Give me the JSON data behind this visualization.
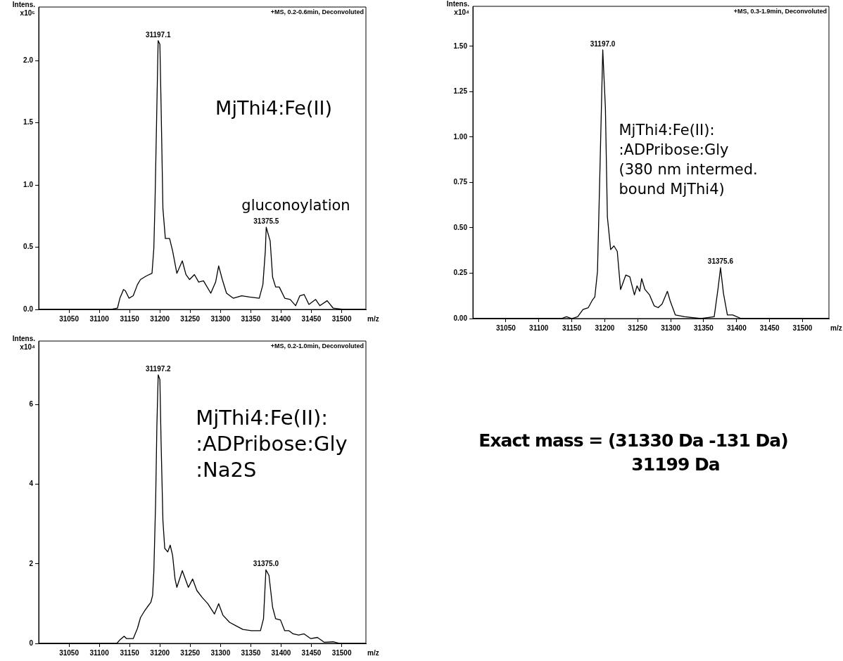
{
  "chart_data": [
    {
      "type": "line",
      "title": "+MS, 0.2-0.6min, Deconvoluted",
      "xlabel": "m/z",
      "ylabel": "Intens. x10⁵",
      "legend": false,
      "grid": false,
      "xlim": [
        31000,
        31540
      ],
      "xticks": [
        31050,
        31100,
        31150,
        31200,
        31250,
        31300,
        31350,
        31400,
        31450,
        31500
      ],
      "ylim": [
        0,
        2.43
      ],
      "yticks": [
        {
          "value": 0,
          "label": "0.0"
        },
        0.5,
        {
          "value": 1,
          "label": "1.0"
        },
        1.5,
        {
          "value": 2,
          "label": "2.0"
        }
      ],
      "series": [
        {
          "color": "#000000",
          "x": [
            31000,
            31120,
            31130,
            31134,
            31140,
            31143,
            31149,
            31156,
            31163,
            31168,
            31178,
            31187,
            31190,
            31192,
            31195,
            31197.1,
            31200,
            31202,
            31205,
            31209,
            31216,
            31221,
            31228,
            31237,
            31243,
            31249,
            31257,
            31264,
            31272,
            31284,
            31292,
            31297,
            31303,
            31310,
            31321,
            31335,
            31348,
            31364,
            31370,
            31374,
            31375.5,
            31382,
            31386,
            31391,
            31397,
            31406,
            31415,
            31424,
            31431,
            31438,
            31446,
            31457,
            31464,
            31476,
            31486,
            31502,
            31540
          ],
          "values": [
            0,
            0,
            0.01,
            0.09,
            0.16,
            0.15,
            0.09,
            0.11,
            0.2,
            0.24,
            0.27,
            0.29,
            0.49,
            0.87,
            1.63,
            2.16,
            2.13,
            1.63,
            0.81,
            0.57,
            0.57,
            0.47,
            0.29,
            0.39,
            0.28,
            0.24,
            0.28,
            0.22,
            0.23,
            0.13,
            0.22,
            0.35,
            0.24,
            0.13,
            0.09,
            0.11,
            0.1,
            0.09,
            0.2,
            0.47,
            0.66,
            0.55,
            0.26,
            0.18,
            0.18,
            0.09,
            0.08,
            0.03,
            0.11,
            0.12,
            0.04,
            0.08,
            0.03,
            0.07,
            0.01,
            0,
            0
          ]
        }
      ],
      "annotations": [
        {
          "text": "31197.1",
          "x": 31197.1,
          "y": 2.16
        },
        {
          "text": "31375.5",
          "x": 31375.5,
          "y": 0.66
        },
        "MjThi4:Fe(II)",
        "gluconoylation"
      ]
    },
    {
      "type": "line",
      "title": "+MS, 0.3-1.9min, Deconvoluted",
      "xlabel": "m/z",
      "ylabel": "Intens. x10⁴",
      "legend": false,
      "grid": false,
      "xlim": [
        31000,
        31540
      ],
      "xticks": [
        31050,
        31100,
        31150,
        31200,
        31250,
        31300,
        31350,
        31400,
        31450,
        31500
      ],
      "ylim": [
        0,
        1.72
      ],
      "yticks": [
        {
          "value": 0,
          "label": "0.00"
        },
        0.25,
        {
          "value": 0.5,
          "label": "0.50"
        },
        0.75,
        {
          "value": 1,
          "label": "1.00"
        },
        1.25,
        {
          "value": 1.5,
          "label": "1.50"
        }
      ],
      "series": [
        {
          "color": "#000000",
          "x": [
            31000,
            31134,
            31142,
            31150,
            31159,
            31167,
            31175,
            31181,
            31185,
            31189,
            31193,
            31197.0,
            31201,
            31204,
            31209,
            31214,
            31219,
            31224,
            31232,
            31238,
            31245,
            31249,
            31253,
            31256,
            31261,
            31268,
            31275,
            31281,
            31287,
            31295,
            31299,
            31307,
            31321,
            31346,
            31366,
            31372,
            31375.6,
            31380,
            31386,
            31394,
            31407,
            31540
          ],
          "values": [
            0,
            0,
            0.01,
            0,
            0.01,
            0.05,
            0.06,
            0.1,
            0.12,
            0.26,
            0.86,
            1.48,
            1.16,
            0.56,
            0.38,
            0.4,
            0.37,
            0.16,
            0.24,
            0.23,
            0.13,
            0.18,
            0.15,
            0.22,
            0.16,
            0.13,
            0.07,
            0.06,
            0.08,
            0.15,
            0.1,
            0.02,
            0.01,
            0,
            0.01,
            0.17,
            0.28,
            0.14,
            0.02,
            0.02,
            0,
            0
          ]
        }
      ],
      "annotations": [
        {
          "text": "31197.0",
          "x": 31197.0,
          "y": 1.48
        },
        {
          "text": "31375.6",
          "x": 31375.6,
          "y": 0.28
        },
        "MjThi4:Fe(II):",
        ":ADPribose:Gly",
        "(380 nm intermed.",
        "bound MjThi4)"
      ]
    },
    {
      "type": "line",
      "title": "+MS, 0.2-1.0min, Deconvoluted",
      "xlabel": "m/z",
      "ylabel": "Intens. x10⁴",
      "legend": false,
      "grid": false,
      "xlim": [
        31000,
        31540
      ],
      "xticks": [
        31050,
        31100,
        31150,
        31200,
        31250,
        31300,
        31350,
        31400,
        31450,
        31500
      ],
      "ylim": [
        0,
        7.6
      ],
      "yticks": [
        0,
        2,
        4,
        6
      ],
      "series": [
        {
          "color": "#000000",
          "x": [
            31000,
            31129,
            31134,
            31141,
            31145,
            31156,
            31163,
            31168,
            31174,
            31179,
            31185,
            31188,
            31190,
            31193,
            31195,
            31197.2,
            31200,
            31202,
            31205,
            31208,
            31213,
            31217,
            31221,
            31225,
            31228,
            31237,
            31247,
            31254,
            31261,
            31270,
            31279,
            31290,
            31297,
            31304,
            31315,
            31326,
            31337,
            31351,
            31366,
            31371,
            31375.0,
            31380,
            31386,
            31391,
            31399,
            31406,
            31413,
            31420,
            31429,
            31438,
            31449,
            31460,
            31471,
            31486,
            31496,
            31540
          ],
          "values": [
            0,
            0,
            0.09,
            0.18,
            0.12,
            0.12,
            0.38,
            0.65,
            0.8,
            0.91,
            1.03,
            1.21,
            1.8,
            3.57,
            5.45,
            6.75,
            6.63,
            5.04,
            3.09,
            2.39,
            2.3,
            2.47,
            2.21,
            1.62,
            1.41,
            1.83,
            1.41,
            1.62,
            1.33,
            1.15,
            1,
            0.74,
            1,
            0.71,
            0.53,
            0.44,
            0.35,
            0.32,
            0.32,
            0.62,
            1.85,
            1.71,
            0.91,
            0.62,
            0.59,
            0.32,
            0.32,
            0.24,
            0.21,
            0.24,
            0.12,
            0.15,
            0.03,
            0.04,
            0,
            0
          ]
        }
      ],
      "annotations": [
        {
          "text": "31197.2",
          "x": 31197.2,
          "y": 6.75
        },
        {
          "text": "31375.0",
          "x": 31375.0,
          "y": 1.85
        },
        "MjThi4:Fe(II):",
        ":ADPribose:Gly",
        ":Na2S"
      ]
    },
    {
      "type": "other",
      "annotations": [
        "Exact mass = (31330 Da -131 Da)",
        "31199 Da"
      ]
    }
  ]
}
